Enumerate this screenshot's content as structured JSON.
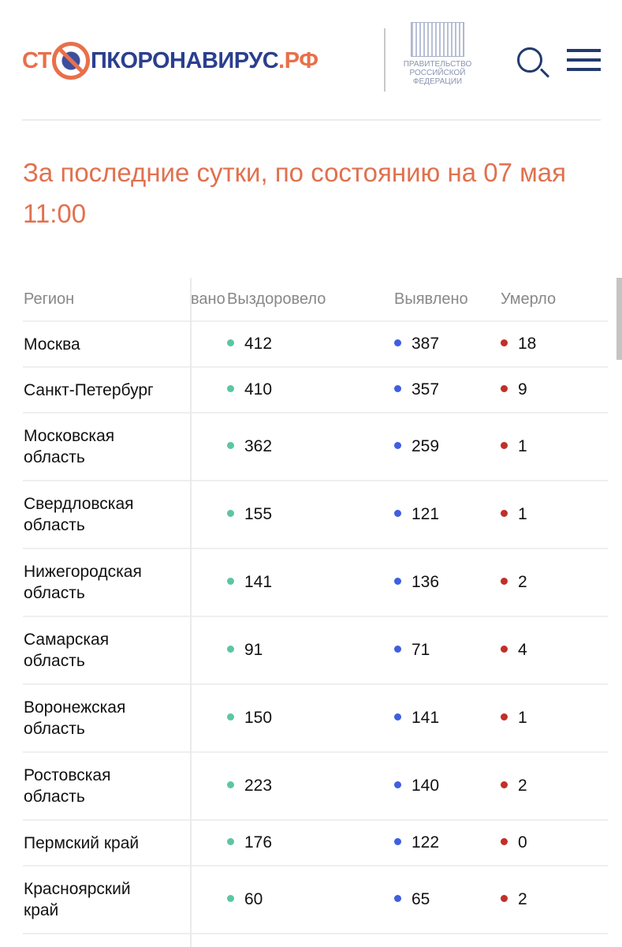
{
  "header": {
    "logo_parts": [
      "СТ",
      "ПКОРОНАВИРУС",
      ".РФ"
    ],
    "gov_label": [
      "ПРАВИТЕЛЬСТВО",
      "РОССИЙСКОЙ",
      "ФЕДЕРАЦИИ"
    ]
  },
  "title_lines": [
    "За последние сутки, по состоянию на 07 мая",
    "11:00"
  ],
  "table": {
    "headers": {
      "region": "Регион",
      "hidden": "вано",
      "recovered": "Выздоровело",
      "detected": "Выявлено",
      "died": "Умерло"
    },
    "colors": {
      "recovered": "#5cc5a5",
      "detected": "#3f5fe0",
      "died": "#c0302a"
    },
    "rows": [
      {
        "region": "Москва",
        "recovered": "412",
        "detected": "387",
        "died": "18"
      },
      {
        "region": "Санкт-Петербург",
        "recovered": "410",
        "detected": "357",
        "died": "9"
      },
      {
        "region": "Московская область",
        "recovered": "362",
        "detected": "259",
        "died": "1"
      },
      {
        "region": "Свердловская область",
        "recovered": "155",
        "detected": "121",
        "died": "1"
      },
      {
        "region": "Нижегородская область",
        "recovered": "141",
        "detected": "136",
        "died": "2"
      },
      {
        "region": "Самарская область",
        "recovered": "91",
        "detected": "71",
        "died": "4"
      },
      {
        "region": "Воронежская область",
        "recovered": "150",
        "detected": "141",
        "died": "1"
      },
      {
        "region": "Ростовская область",
        "recovered": "223",
        "detected": "140",
        "died": "2"
      },
      {
        "region": "Пермский край",
        "recovered": "176",
        "detected": "122",
        "died": "0"
      },
      {
        "region": "Красноярский край",
        "recovered": "60",
        "detected": "65",
        "died": "2"
      }
    ]
  }
}
